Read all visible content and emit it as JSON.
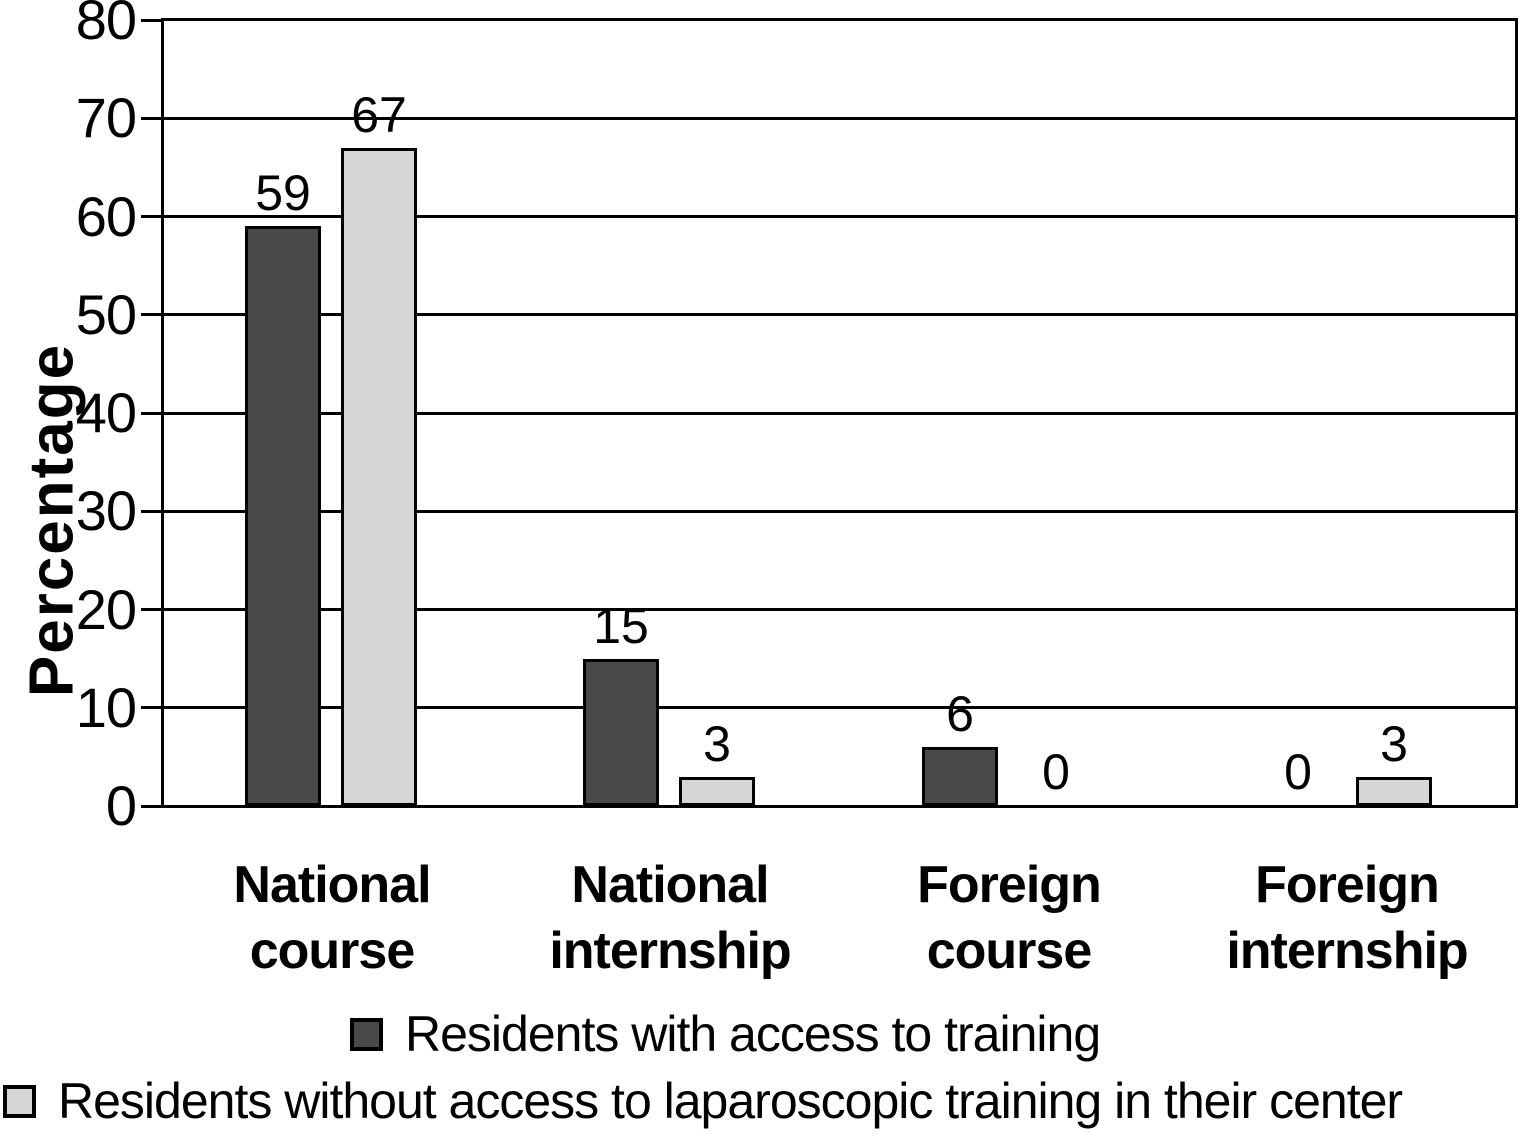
{
  "figure": {
    "background": "#ffffff",
    "text_color": "#000000",
    "outline_color": "#000000"
  },
  "chart_data": {
    "type": "bar",
    "ylabel": "Percentage",
    "ylim": [
      0,
      80
    ],
    "ytick_step": 10,
    "yticks": [
      0,
      10,
      20,
      30,
      40,
      50,
      60,
      70,
      80
    ],
    "grid": true,
    "gridline_color": "#000000",
    "legend_position": "bottom",
    "value_labels_shown": true,
    "categories": [
      "National course",
      "National internship",
      "Foreign course",
      "Foreign internship"
    ],
    "series": [
      {
        "name": "Residents with access to training",
        "color": "#4a4a4a",
        "values": [
          59,
          15,
          6,
          0
        ]
      },
      {
        "name": "Residents without access to laparoscopic training in their center",
        "color": "#d6d6d6",
        "values": [
          67,
          3,
          0,
          3
        ]
      }
    ]
  }
}
